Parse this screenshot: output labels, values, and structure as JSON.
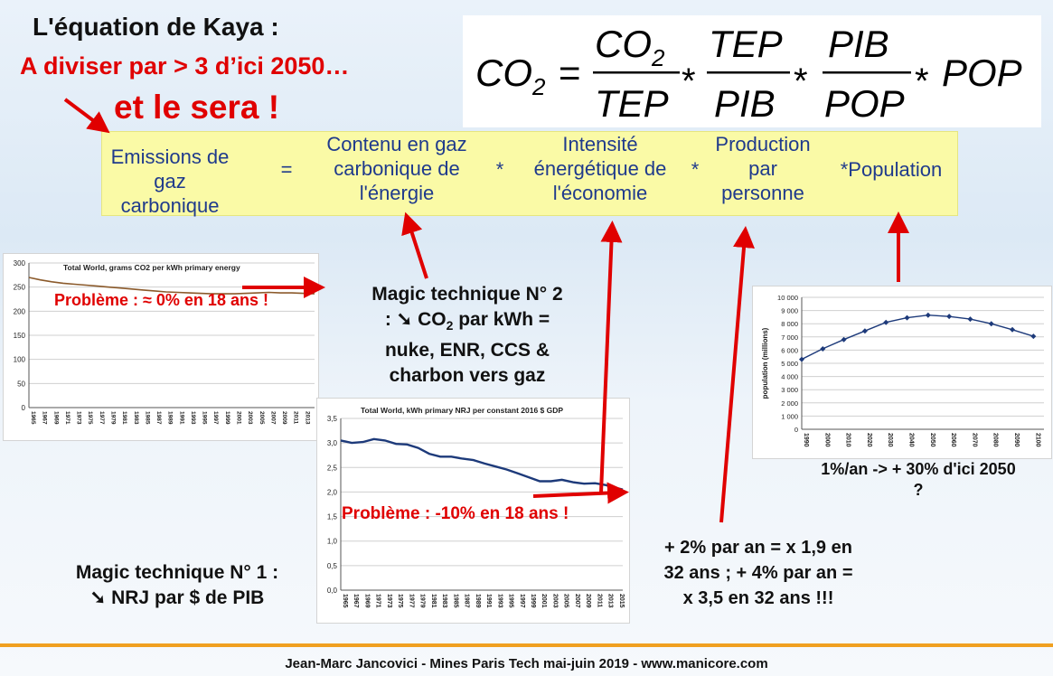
{
  "title": "L'équation de Kaya :",
  "subtitle_line1": "A diviser par > 3 d’ici 2050…",
  "subtitle_line2": "et le sera !",
  "formula": {
    "lhs": "CO",
    "lhs_sub": "2",
    "frac1_num": "CO",
    "frac1_num_sub": "2",
    "frac1_den": "TEP",
    "frac2_num": "TEP",
    "frac2_den": "PIB",
    "frac3_num": "PIB",
    "frac3_den": "POP",
    "last": "POP",
    "equals": "=",
    "times": "*"
  },
  "terms": {
    "emissions": [
      "Emissions de",
      "gaz carbonique"
    ],
    "equals": "=",
    "carbon_content": [
      "Contenu en gaz",
      "carbonique de",
      "l'énergie"
    ],
    "star1": "*",
    "intensity": [
      "Intensité",
      "énergétique de",
      "l'économie"
    ],
    "star2": "*",
    "production": [
      "Production",
      "par",
      "personne"
    ],
    "population": "*Population"
  },
  "chart1": {
    "title": "Total World, grams CO2 per kWh primary energy",
    "problem": "Problème : ≈ 0% en 18 ans !"
  },
  "magic2": {
    "line1": "Magic technique N° 2",
    "line2_pre": ": ➘ CO",
    "line2_sub": "2",
    "line2_post": " par kWh  =",
    "line3": "nuke, ENR, CCS &",
    "line4": "charbon vers gaz"
  },
  "chart2": {
    "title": "Total World, kWh primary NRJ per constant 2016 $ GDP",
    "problem": "Problème : -10% en 18 ans !"
  },
  "magic1": {
    "line1": "Magic technique N° 1 :",
    "line2": "➘ NRJ par $ de PIB"
  },
  "growth": [
    "+ 2% par an = x 1,9 en",
    "32 ans ; + 4% par an =",
    "x 3,5 en 32 ans !!!"
  ],
  "chart3": {
    "ylabel": "population (millions)"
  },
  "population_note": [
    "1%/an -> + 30% d'ici 2050",
    "?"
  ],
  "footer": "Jean-Marc Jancovici - Mines Paris Tech mai-juin 2019 - www.manicore.com",
  "colors": {
    "red": "#e00000",
    "blue": "#1f3a8c",
    "yellow": "#fafaa6",
    "orange": "#f0a020",
    "navy": "#1d3a7a",
    "brown": "#8b5a2b"
  },
  "chart_data": [
    {
      "type": "line",
      "title": "Total World, grams CO2 per kWh primary energy",
      "x": [
        1965,
        1967,
        1969,
        1971,
        1973,
        1975,
        1977,
        1979,
        1981,
        1983,
        1985,
        1987,
        1989,
        1991,
        1993,
        1995,
        1997,
        1999,
        2001,
        2003,
        2005,
        2007,
        2009,
        2011,
        2013,
        2015
      ],
      "x_ticks": [
        "1965",
        "1967",
        "1969",
        "1971",
        "1973",
        "1975",
        "1977",
        "1979",
        "1981",
        "1983",
        "1985",
        "1987",
        "1989",
        "1991",
        "1993",
        "1995",
        "1997",
        "1999",
        "2001",
        "2003",
        "2005",
        "2007",
        "2009",
        "2011",
        "2013",
        "2015"
      ],
      "values": [
        270,
        265,
        261,
        258,
        256,
        254,
        252,
        250,
        248,
        246,
        244,
        242,
        240,
        239,
        238,
        237,
        236,
        236,
        236,
        237,
        238,
        239,
        238,
        238,
        237,
        236
      ],
      "ylim": [
        0,
        300
      ],
      "y_ticks": [
        "0",
        "50",
        "100",
        "150",
        "200",
        "250",
        "300"
      ],
      "grid": true
    },
    {
      "type": "line",
      "title": "Total World, kWh primary NRJ per constant 2016 $ GDP",
      "x": [
        1965,
        1967,
        1969,
        1971,
        1973,
        1975,
        1977,
        1979,
        1981,
        1983,
        1985,
        1987,
        1989,
        1991,
        1993,
        1995,
        1997,
        1999,
        2001,
        2003,
        2005,
        2007,
        2009,
        2011,
        2013,
        2015,
        2016
      ],
      "x_ticks": [
        "1965",
        "1967",
        "1969",
        "1971",
        "1973",
        "1975",
        "1977",
        "1979",
        "1981",
        "1983",
        "1985",
        "1987",
        "1989",
        "1991",
        "1993",
        "1995",
        "1997",
        "1999",
        "2001",
        "2003",
        "2005",
        "2007",
        "2009",
        "2011",
        "2013",
        "2015"
      ],
      "values": [
        3.05,
        3.0,
        3.02,
        3.08,
        3.05,
        2.98,
        2.97,
        2.9,
        2.78,
        2.72,
        2.72,
        2.68,
        2.65,
        2.58,
        2.52,
        2.46,
        2.38,
        2.3,
        2.22,
        2.22,
        2.25,
        2.2,
        2.17,
        2.18,
        2.14,
        2.08,
        2.05
      ],
      "ylim": [
        0,
        3.5
      ],
      "y_ticks": [
        "0,0",
        "0,5",
        "1,0",
        "1,5",
        "2,0",
        "2,5",
        "3,0",
        "3,5"
      ],
      "grid": true
    },
    {
      "type": "line",
      "ylabel": "population (millions)",
      "x": [
        1990,
        2000,
        2010,
        2020,
        2030,
        2040,
        2050,
        2060,
        2070,
        2080,
        2090,
        2100
      ],
      "x_ticks": [
        "1990",
        "2000",
        "2010",
        "2020",
        "2030",
        "2040",
        "2050",
        "2060",
        "2070",
        "2080",
        "2090",
        "2100"
      ],
      "values": [
        5300,
        6100,
        6800,
        7450,
        8100,
        8450,
        8650,
        8550,
        8350,
        8000,
        7550,
        7050
      ],
      "ylim": [
        0,
        10000
      ],
      "y_ticks": [
        "0",
        "1 000",
        "2 000",
        "3 000",
        "4 000",
        "5 000",
        "6 000",
        "7 000",
        "8 000",
        "9 000",
        "10 000"
      ],
      "grid": true,
      "markers": true
    }
  ]
}
